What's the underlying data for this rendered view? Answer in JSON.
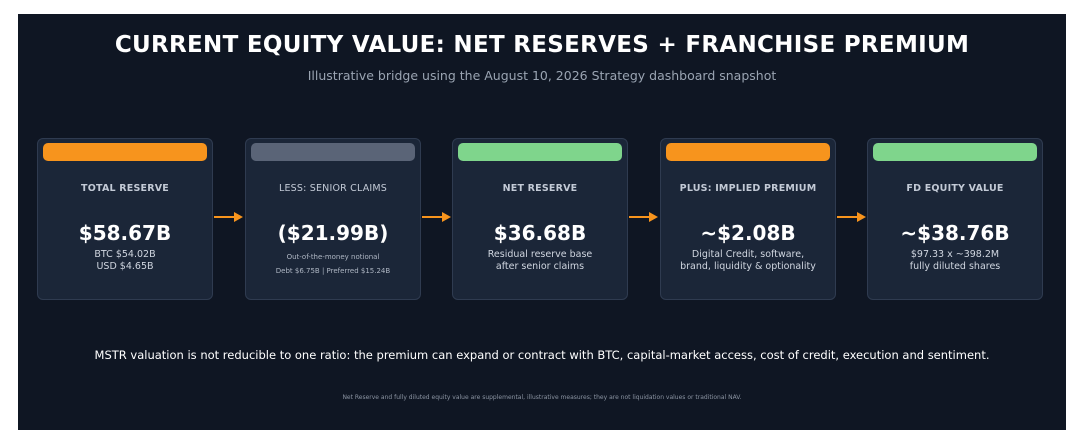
{
  "header": {
    "title": "CURRENT EQUITY VALUE: NET RESERVES + FRANCHISE PREMIUM",
    "subtitle": "Illustrative bridge using the August 10, 2026 Strategy dashboard snapshot"
  },
  "colors": {
    "orange": "#f7941d",
    "slate": "#5a6477",
    "green": "#7fd58c"
  },
  "cards": [
    {
      "label": "TOTAL RESERVE",
      "value": "$58.67B",
      "detail1": "BTC $54.02B",
      "detail2": "USD $4.65B",
      "bar_color": "orange"
    },
    {
      "label": "LESS: SENIOR CLAIMS",
      "value": "($21.99B)",
      "detail1": "Out-of-the-money notional",
      "detail2": "Debt $6.75B  |  Preferred $15.24B",
      "bar_color": "slate"
    },
    {
      "label": "NET RESERVE",
      "value": "$36.68B",
      "detail1": "Residual reserve base",
      "detail2": "after senior claims",
      "bar_color": "green"
    },
    {
      "label": "PLUS: IMPLIED PREMIUM",
      "value": "~$2.08B",
      "detail1": "Digital Credit, software,",
      "detail2": "brand, liquidity & optionality",
      "bar_color": "orange"
    },
    {
      "label": "FD EQUITY VALUE",
      "value": "~$38.76B",
      "detail1": "$97.33 x ~398.2M",
      "detail2": "fully diluted shares",
      "bar_color": "green"
    }
  ],
  "note": "MSTR valuation is not reducible to one ratio: the premium can expand or contract with BTC, capital-market access, cost of credit, execution and sentiment.",
  "footnote": "Net Reserve and fully diluted equity value are supplemental, illustrative measures; they are not liquidation values or traditional NAV."
}
